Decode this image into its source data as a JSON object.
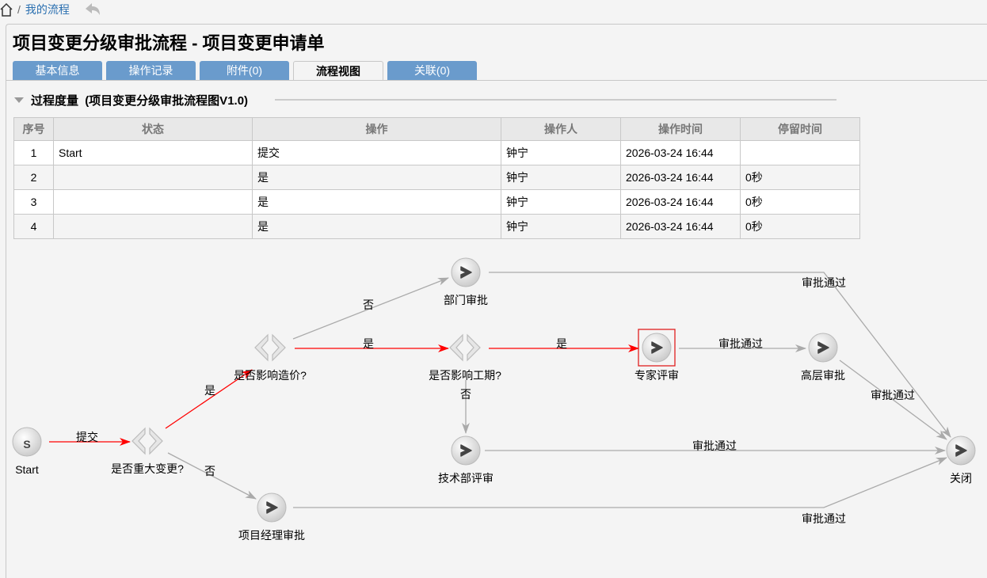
{
  "breadcrumb": {
    "home_icon": "home-icon",
    "separator": "/",
    "current": "我的流程",
    "back_icon": "back-arrow-icon"
  },
  "title": "项目变更分级审批流程 - 项目变更申请单",
  "tabs": [
    {
      "label": "基本信息"
    },
    {
      "label": "操作记录"
    },
    {
      "label": "附件(0)"
    },
    {
      "label": "流程视图",
      "active": true
    },
    {
      "label": "关联(0)"
    }
  ],
  "section": {
    "title": "过程度量",
    "subtitle": "(项目变更分级审批流程图V1.0)"
  },
  "table": {
    "headers": [
      "序号",
      "状态",
      "操作",
      "操作人",
      "操作时间",
      "停留时间"
    ],
    "rows": [
      [
        "1",
        "Start",
        "提交",
        "钟宁",
        "2026-03-24 16:44",
        ""
      ],
      [
        "2",
        "",
        "是",
        "钟宁",
        "2026-03-24 16:44",
        "0秒"
      ],
      [
        "3",
        "",
        "是",
        "钟宁",
        "2026-03-24 16:44",
        "0秒"
      ],
      [
        "4",
        "",
        "是",
        "钟宁",
        "2026-03-24 16:44",
        "0秒"
      ]
    ]
  },
  "diagram": {
    "colors": {
      "active": "#ff0000",
      "inactive": "#aaaaaa",
      "highlight": "#e02020"
    },
    "nodes": {
      "start": "Start",
      "d1": "是否重大变更?",
      "d2": "是否影响造价?",
      "d3": "是否影响工期?",
      "dept": "部门审批",
      "expert": "专家评审",
      "senior": "高层审批",
      "tech": "技术部评审",
      "pm": "项目经理审批",
      "close": "关闭"
    },
    "edges": {
      "submit": "提交",
      "d1_yes": "是",
      "d1_no": "否",
      "d2_no": "否",
      "d2_yes": "是",
      "d3_yes": "是",
      "d3_no": "否",
      "expert_pass": "审批通过",
      "senior_pass": "审批通过",
      "dept_pass": "审批通过",
      "tech_pass": "审批通过",
      "pm_pass": "审批通过"
    }
  }
}
